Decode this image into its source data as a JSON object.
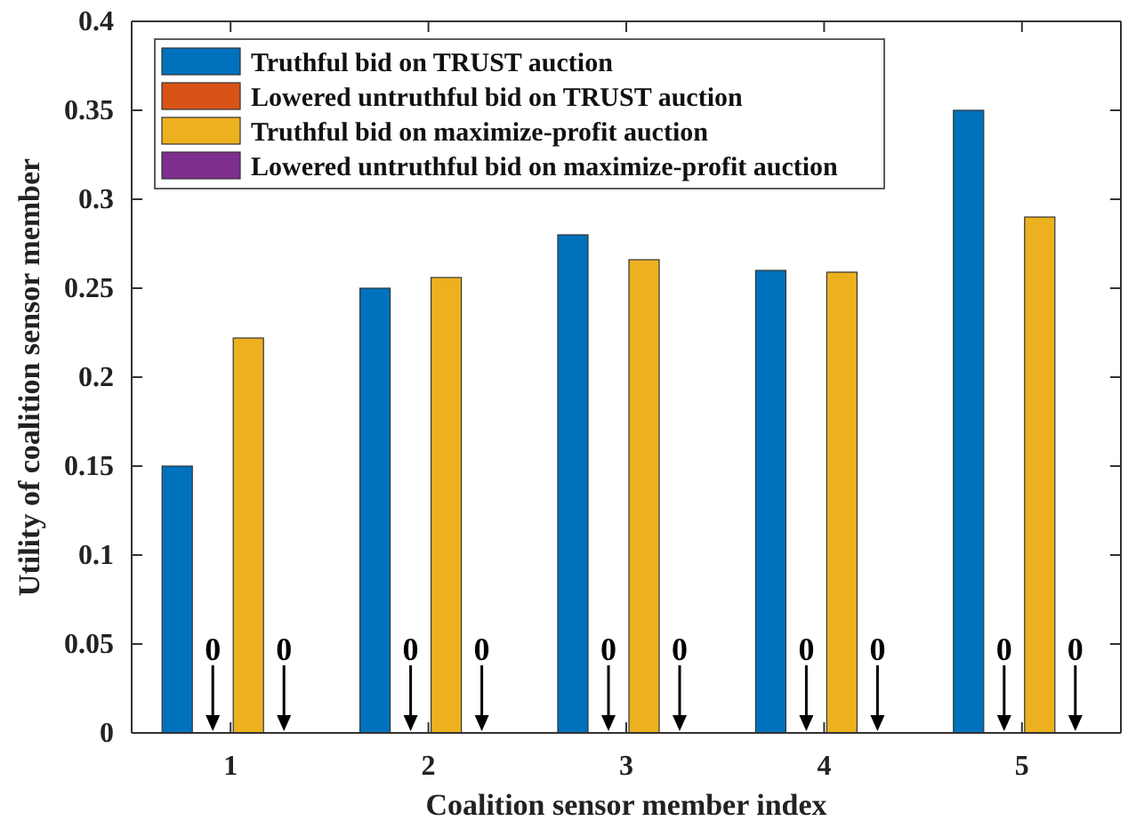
{
  "chart_data": {
    "type": "bar",
    "xlabel": "Coalition sensor member index",
    "ylabel": "Utility of coalition sensor member",
    "categories": [
      "1",
      "2",
      "3",
      "4",
      "5"
    ],
    "series": [
      {
        "name": "Truthful bid on TRUST auction",
        "color": "#0072bd",
        "values": [
          0.15,
          0.25,
          0.28,
          0.26,
          0.35
        ]
      },
      {
        "name": "Lowered untruthful bid on TRUST auction",
        "color": "#d95319",
        "values": [
          0,
          0,
          0,
          0,
          0
        ]
      },
      {
        "name": "Truthful bid on maximize-profit auction",
        "color": "#edb120",
        "values": [
          0.222,
          0.256,
          0.266,
          0.259,
          0.29
        ]
      },
      {
        "name": "Lowered untruthful bid on maximize-profit auction",
        "color": "#7e2f8e",
        "values": [
          0,
          0,
          0,
          0,
          0
        ]
      }
    ],
    "ylim": [
      0,
      0.4
    ],
    "yticks": [
      0,
      0.05,
      0.1,
      0.15,
      0.2,
      0.25,
      0.3,
      0.35,
      0.4
    ],
    "grid": false,
    "legend": "top left",
    "annotations": [
      {
        "text": "0",
        "x": "1",
        "y": 0
      },
      {
        "text": "0",
        "x": "1",
        "y": 0
      },
      {
        "text": "0",
        "x": "2",
        "y": 0
      },
      {
        "text": "0",
        "x": "2",
        "y": 0
      },
      {
        "text": "0",
        "x": "3",
        "y": 0
      },
      {
        "text": "0",
        "x": "3",
        "y": 0
      },
      {
        "text": "0",
        "x": "4",
        "y": 0
      },
      {
        "text": "0",
        "x": "4",
        "y": 0
      },
      {
        "text": "0",
        "x": "5",
        "y": 0
      },
      {
        "text": "0",
        "x": "5",
        "y": 0
      }
    ]
  }
}
